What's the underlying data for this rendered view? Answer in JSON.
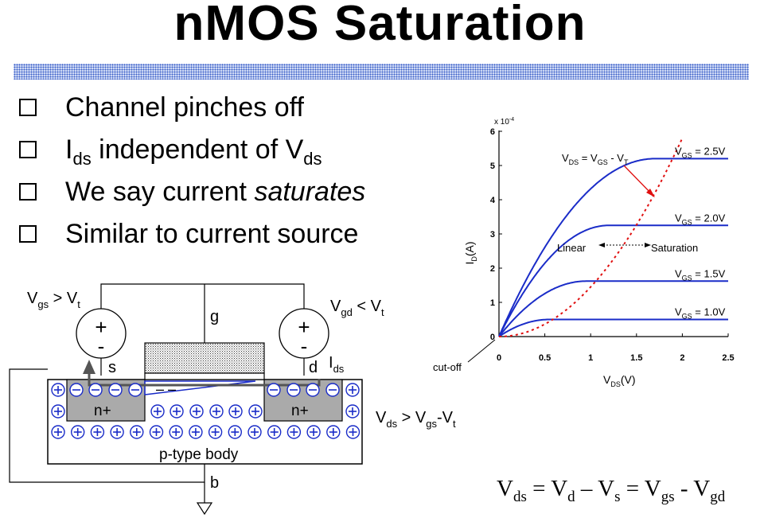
{
  "title": "nMOS Saturation",
  "bullets": [
    {
      "parts": [
        "Channel pinches off"
      ]
    },
    {
      "parts": [
        "I",
        "ds",
        " independent of V",
        "ds"
      ]
    },
    {
      "parts": [
        "We say current ",
        "saturates"
      ]
    },
    {
      "parts": [
        "Similar to current source"
      ]
    }
  ],
  "device": {
    "vgs_label": [
      "V",
      "gs",
      " > V",
      "t"
    ],
    "vgd_label": [
      "V",
      "gd",
      " < V",
      "t"
    ],
    "vds_label": [
      "V",
      "ds",
      " > V",
      "gs",
      "-V",
      "t"
    ],
    "ids_label": [
      "I",
      "ds"
    ],
    "g": "g",
    "s": "s",
    "d": "d",
    "b": "b",
    "plus": "+",
    "minus": "-",
    "n_plus": "n+",
    "body": "p-type body",
    "channel_minus": "– –"
  },
  "chart_data": {
    "type": "line",
    "xlabel": "V",
    "xlabel_sub": "DS",
    "xlabel_unit": "(V)",
    "ylabel": "I",
    "ylabel_sub": "D",
    "ylabel_unit": "(A)",
    "y_multiplier": "x 10",
    "y_multiplier_exp": "-4",
    "xlim": [
      0,
      2.5
    ],
    "ylim": [
      0,
      6
    ],
    "xticks": [
      "0",
      "0.5",
      "1",
      "1.5",
      "2",
      "2.5"
    ],
    "yticks": [
      "0",
      "1",
      "2",
      "3",
      "4",
      "5",
      "6"
    ],
    "series": [
      {
        "name": "V_GS = 2.5V",
        "label": [
          "V",
          "GS",
          " = 2.5V"
        ],
        "vov": 1.7,
        "isat": 5.2
      },
      {
        "name": "V_GS = 2.0V",
        "label": [
          "V",
          "GS",
          " = 2.0V"
        ],
        "vov": 1.2,
        "isat": 3.25
      },
      {
        "name": "V_GS = 1.5V",
        "label": [
          "V",
          "GS",
          " = 1.5V"
        ],
        "vov": 0.95,
        "isat": 1.62
      },
      {
        "name": "V_GS = 1.0V",
        "label": [
          "V",
          "GS",
          " = 1.0V"
        ],
        "vov": 0.55,
        "isat": 0.5
      }
    ],
    "boundary": {
      "label": [
        "V",
        "DS",
        " = V",
        "GS",
        " - V",
        "T"
      ],
      "k": 1.45
    },
    "annotations": {
      "linear": "Linear",
      "saturation": "Saturation",
      "cutoff": "cut-off"
    }
  },
  "equation": [
    "V",
    "ds",
    " = V",
    "d",
    " – V",
    "s",
    " = V",
    "gs",
    " - V",
    "gd"
  ]
}
